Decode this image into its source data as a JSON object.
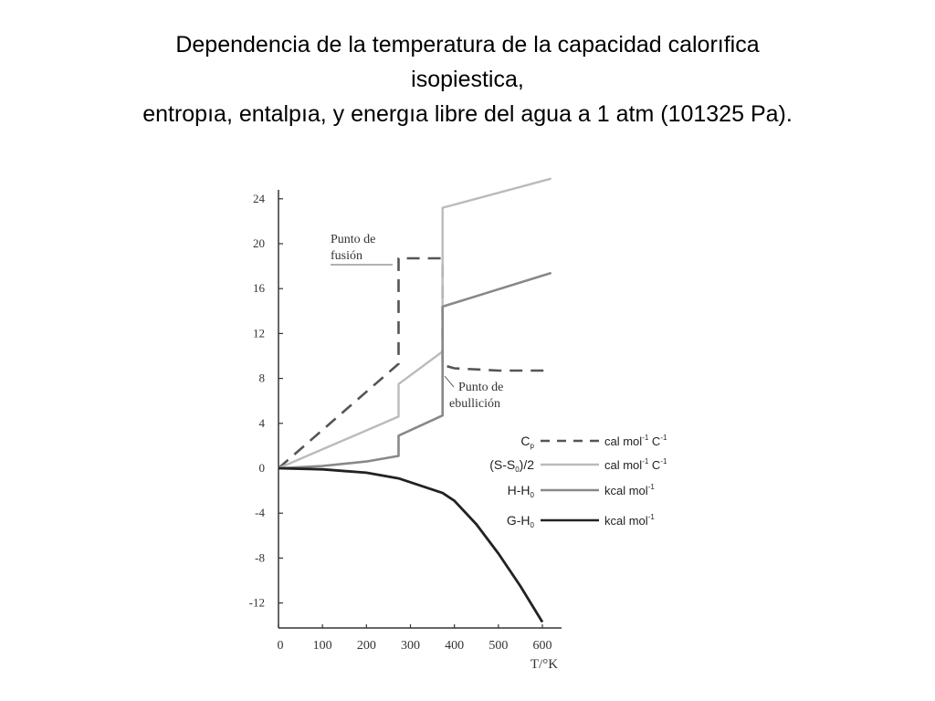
{
  "title_lines": [
    "Dependencia de la temperatura de la capacidad calorıfica",
    "isopiestica,",
    "entropıa, entalpıa, y energıa libre del agua a 1 atm (101325 Pa)."
  ],
  "chart_data": {
    "type": "line",
    "xlabel": "T/°K",
    "ylabel": "",
    "xlim": [
      0,
      620
    ],
    "ylim": [
      -14,
      25
    ],
    "x_ticks": [
      0,
      100,
      200,
      300,
      400,
      500,
      600
    ],
    "y_ticks": [
      24,
      20,
      16,
      12,
      8,
      4,
      0,
      -4,
      -8,
      -12
    ],
    "grid": false,
    "legend_position": "middle-right",
    "annotations": [
      {
        "lines": [
          "Punto de",
          "fusión"
        ],
        "x": 273
      },
      {
        "lines": [
          "Punto de",
          "ebullición"
        ],
        "x": 373
      }
    ],
    "series": [
      {
        "name": "Cp",
        "unit": "cal mol-1 C-1",
        "style": "dashed",
        "color": "#555555",
        "points": [
          [
            0,
            0
          ],
          [
            273,
            9.3
          ],
          [
            273,
            18.7
          ],
          [
            373,
            18.7
          ],
          [
            373,
            9.2
          ],
          [
            400,
            8.9
          ],
          [
            500,
            8.7
          ],
          [
            610,
            8.7
          ]
        ]
      },
      {
        "name": "(S-S0)/2",
        "unit": "cal mol-1 C-1",
        "style": "solid",
        "color": "#bbbbbb",
        "points": [
          [
            0,
            0
          ],
          [
            273,
            4.6
          ],
          [
            273,
            7.5
          ],
          [
            373,
            10.4
          ],
          [
            373,
            23.2
          ],
          [
            620,
            25.8
          ]
        ]
      },
      {
        "name": "H-H0",
        "unit": "kcal mol-1",
        "style": "solid",
        "color": "#888888",
        "points": [
          [
            0,
            0
          ],
          [
            100,
            0.2
          ],
          [
            200,
            0.6
          ],
          [
            273,
            1.1
          ],
          [
            273,
            2.9
          ],
          [
            373,
            4.7
          ],
          [
            373,
            14.4
          ],
          [
            620,
            17.4
          ]
        ]
      },
      {
        "name": "G-H0",
        "unit": "kcal mol-1",
        "style": "solid",
        "color": "#222222",
        "points": [
          [
            0,
            0
          ],
          [
            100,
            -0.1
          ],
          [
            200,
            -0.4
          ],
          [
            273,
            -0.9
          ],
          [
            373,
            -2.2
          ],
          [
            400,
            -2.9
          ],
          [
            450,
            -5.0
          ],
          [
            500,
            -7.6
          ],
          [
            550,
            -10.5
          ],
          [
            600,
            -13.7
          ]
        ]
      }
    ]
  }
}
